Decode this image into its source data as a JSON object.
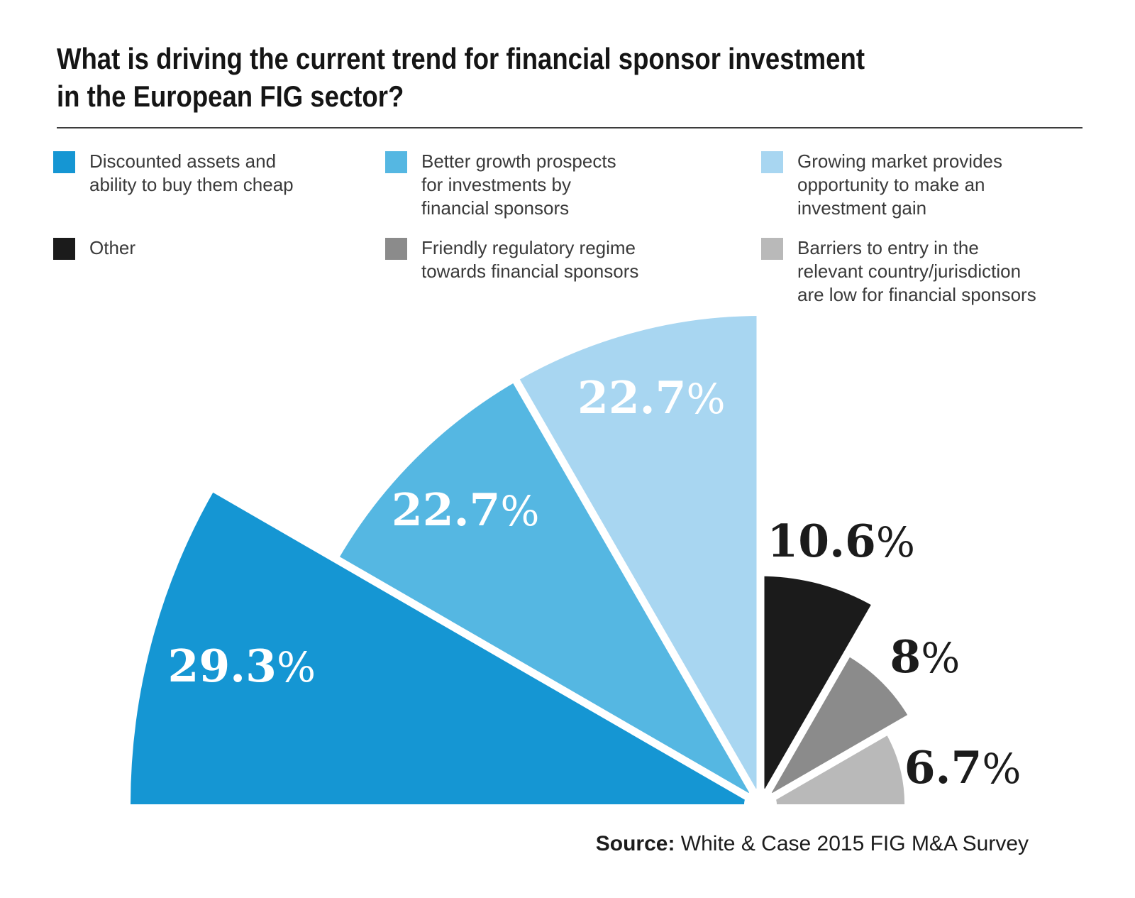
{
  "title": {
    "line1": "What is driving the current trend for financial sponsor investment",
    "line2": "in the European FIG sector?"
  },
  "legend": {
    "items": [
      {
        "label": "Discounted assets and\nability to buy them cheap",
        "color": "#1596D3"
      },
      {
        "label": "Better growth prospects\nfor investments by\nfinancial sponsors",
        "color": "#55B7E2"
      },
      {
        "label": "Growing market provides\nopportunity to make an\ninvestment gain",
        "color": "#A8D6F1"
      },
      {
        "label": "Other",
        "color": "#1B1B1B"
      },
      {
        "label": "Friendly regulatory regime\ntowards financial sponsors",
        "color": "#8B8B8B"
      },
      {
        "label": "Barriers to entry in the\nrelevant country/jurisdiction\nare low for financial sponsors",
        "color": "#B9B9B9"
      }
    ]
  },
  "source": {
    "prefix": "Source:",
    "text": " White & Case 2015 FIG M&A Survey"
  },
  "chart_data": {
    "type": "pie",
    "variant": "semicircular fan / rose chart — six equal 30° sectors, radius proportional to value",
    "title": "What is driving the current trend for financial sponsor investment in the European FIG sector?",
    "unit": "%",
    "categories": [
      "Discounted assets and ability to buy them cheap",
      "Better growth prospects for investments by financial sponsors",
      "Growing market provides opportunity to make an investment gain",
      "Other",
      "Friendly regulatory regime towards financial sponsors",
      "Barriers to entry in the relevant country/jurisdiction are low for financial sponsors"
    ],
    "values": [
      29.3,
      22.7,
      22.7,
      10.6,
      8,
      6.7
    ],
    "value_labels": [
      "29.3",
      "22.7",
      "22.7",
      "10.6",
      "8",
      "6.7"
    ],
    "percent_symbol": "%",
    "colors": [
      "#1596D3",
      "#55B7E2",
      "#A8D6F1",
      "#1B1B1B",
      "#8B8B8B",
      "#B9B9B9"
    ],
    "label_text_colors": [
      "#FFFFFF",
      "#FFFFFF",
      "#FFFFFF",
      "#1B1B1B",
      "#1B1B1B",
      "#1B1B1B"
    ],
    "legend_position": "top, two rows by three columns",
    "layout": {
      "center": [
        1072,
        1133
      ],
      "max_radius": 888,
      "max_value": 29.3,
      "start_angle_deg": 180,
      "sector_span_deg": 30,
      "gap_line_width": 11,
      "gap_line_overhang": 25,
      "notch_radius": 23,
      "label_angles": [
        165,
        135,
        105,
        73,
        42,
        10.5
      ],
      "label_dist": [
        757,
        588,
        594,
        389,
        312,
        290
      ],
      "label_baseline_shift": 23
    },
    "source": "Source: White & Case 2015 FIG M&A Survey"
  }
}
